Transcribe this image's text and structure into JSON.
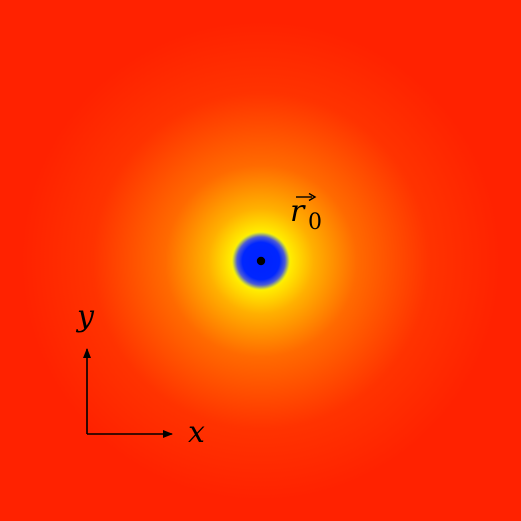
{
  "labels": {
    "position_vector": "r",
    "position_subscript": "0",
    "x_axis": "x",
    "y_axis": "y"
  },
  "colors": {
    "background": "#ff2200",
    "halo_outer": "#ff4a00",
    "halo_mid": "#ff9a00",
    "halo_inner": "#ffee00",
    "core": "#0026ff",
    "core_edge": "#4a5ad8",
    "point": "#000000",
    "axes": "#000000"
  }
}
